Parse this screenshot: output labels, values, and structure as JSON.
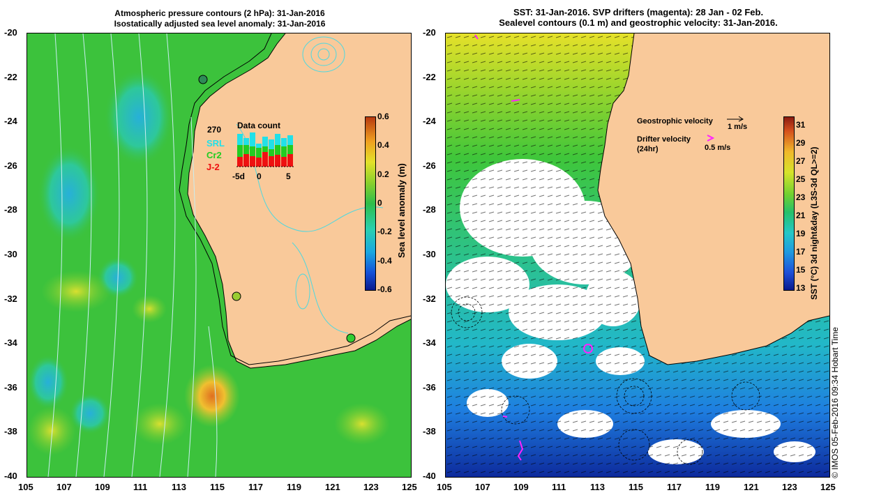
{
  "left_panel": {
    "title_line1": "Atmospheric pressure contours (2 hPa): 31-Jan-2016",
    "title_line2": "Isostatically adjusted sea level anomaly: 31-Jan-2016",
    "colorbar_title": "Sea level anomaly (m)",
    "colorbar_ticks": [
      "0.6",
      "0.4",
      "0.2",
      "0",
      "-0.2",
      "-0.4",
      "-0.6"
    ],
    "inset": {
      "count": "270",
      "title": "Data count",
      "series_labels": [
        "SRL",
        "Cr2",
        "J-2"
      ],
      "series_colors": [
        "#22e0e8",
        "#22cc22",
        "#ee1111"
      ],
      "x_ticks": [
        "-5d",
        "0",
        "5"
      ]
    },
    "station_markers": [
      "#2e8b57",
      "#9acd32",
      "#32cd32"
    ]
  },
  "right_panel": {
    "title_line1": "SST: 31-Jan-2016. SVP drifters (magenta): 28 Jan - 02 Feb.",
    "title_line2": "Sealevel contours (0.1 m) and geostrophic velocity: 31-Jan-2016.",
    "colorbar_title": "SST (°C) 3d night&day (L3S-3d QL>=2)",
    "colorbar_ticks": [
      "31",
      "29",
      "27",
      "25",
      "23",
      "21",
      "19",
      "17",
      "15",
      "13"
    ],
    "legend": {
      "geo_label": "Geostrophic velocity",
      "geo_scale": "1 m/s",
      "drifter_label_1": "Drifter velocity",
      "drifter_label_2": "(24hr)",
      "drifter_scale": "0.5 m/s"
    }
  },
  "axes": {
    "x_ticks": [
      "105",
      "107",
      "109",
      "111",
      "113",
      "115",
      "117",
      "119",
      "121",
      "123",
      "125"
    ],
    "y_ticks": [
      "-20",
      "-22",
      "-24",
      "-26",
      "-28",
      "-30",
      "-32",
      "-34",
      "-36",
      "-38",
      "-40"
    ]
  },
  "colors": {
    "land": "#f9c99a",
    "ocean_green": "#3cc23c",
    "drifter": "#ff22ff"
  },
  "footer": "© IMOS 05-Feb-2016 09:34 Hobart Time"
}
